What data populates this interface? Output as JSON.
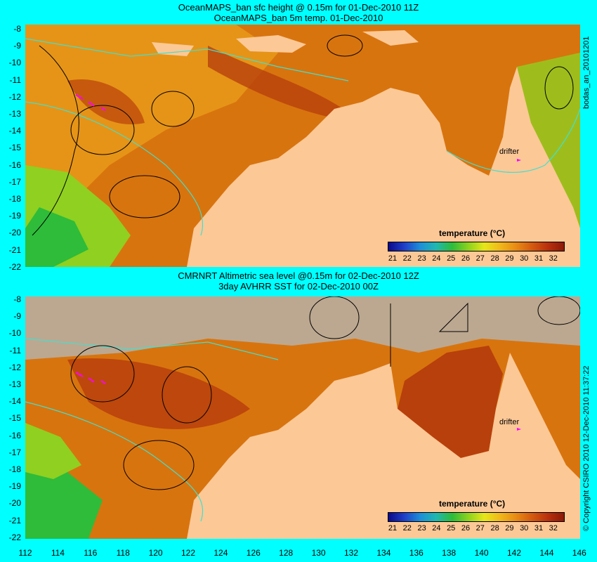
{
  "top_panel": {
    "title_line1": "OceanMAPS_ban sfc height @ 0.15m for 01-Dec-2010 11Z",
    "title_line2": "OceanMAPS_ban 5m temp. 01-Dec-2010",
    "side_label": "bodas_an_20101201",
    "drifter_label": "drifter",
    "legend_title": "temperature (°C)"
  },
  "bottom_panel": {
    "title_line1": "CMRNRT Altimetric sea level  @0.15m  for 02-Dec-2010 12Z",
    "title_line2": "3day AVHRR SST for 02-Dec-2010 00Z",
    "side_label": "© Copyright CSIRO 2010   12-Dec-2010 11:37:22",
    "drifter_label": "drifter",
    "legend_title": "temperature (°C)"
  },
  "colorbar": {
    "labels": [
      "21",
      "22",
      "23",
      "24",
      "25",
      "26",
      "27",
      "28",
      "29",
      "30",
      "31",
      "32"
    ],
    "colors": [
      "#0a0a8a",
      "#1f3fc8",
      "#1e8fd8",
      "#20b8b0",
      "#2ebc3a",
      "#8cd21e",
      "#e6e61a",
      "#f0b81a",
      "#e88a14",
      "#d45a10",
      "#b8300c",
      "#8c1a08"
    ]
  },
  "y_ticks": [
    "-8",
    "-9",
    "-10",
    "-11",
    "-12",
    "-13",
    "-14",
    "-15",
    "-16",
    "-17",
    "-18",
    "-19",
    "-20",
    "-21",
    "-22"
  ],
  "x_ticks": [
    "112",
    "114",
    "116",
    "118",
    "120",
    "122",
    "124",
    "126",
    "128",
    "130",
    "132",
    "134",
    "136",
    "138",
    "140",
    "142",
    "144",
    "146"
  ],
  "colors": {
    "background": "#00ffff",
    "land": "#fcc896",
    "no_data": "#bca890",
    "sst_warm": "#d8740e",
    "sst_hot": "#b8400c",
    "sst_mid": "#e89818",
    "sst_cool": "#90d020",
    "contour_cyan": "#40e0d0",
    "contour_black": "#000000",
    "drifter": "#ff00ff"
  }
}
